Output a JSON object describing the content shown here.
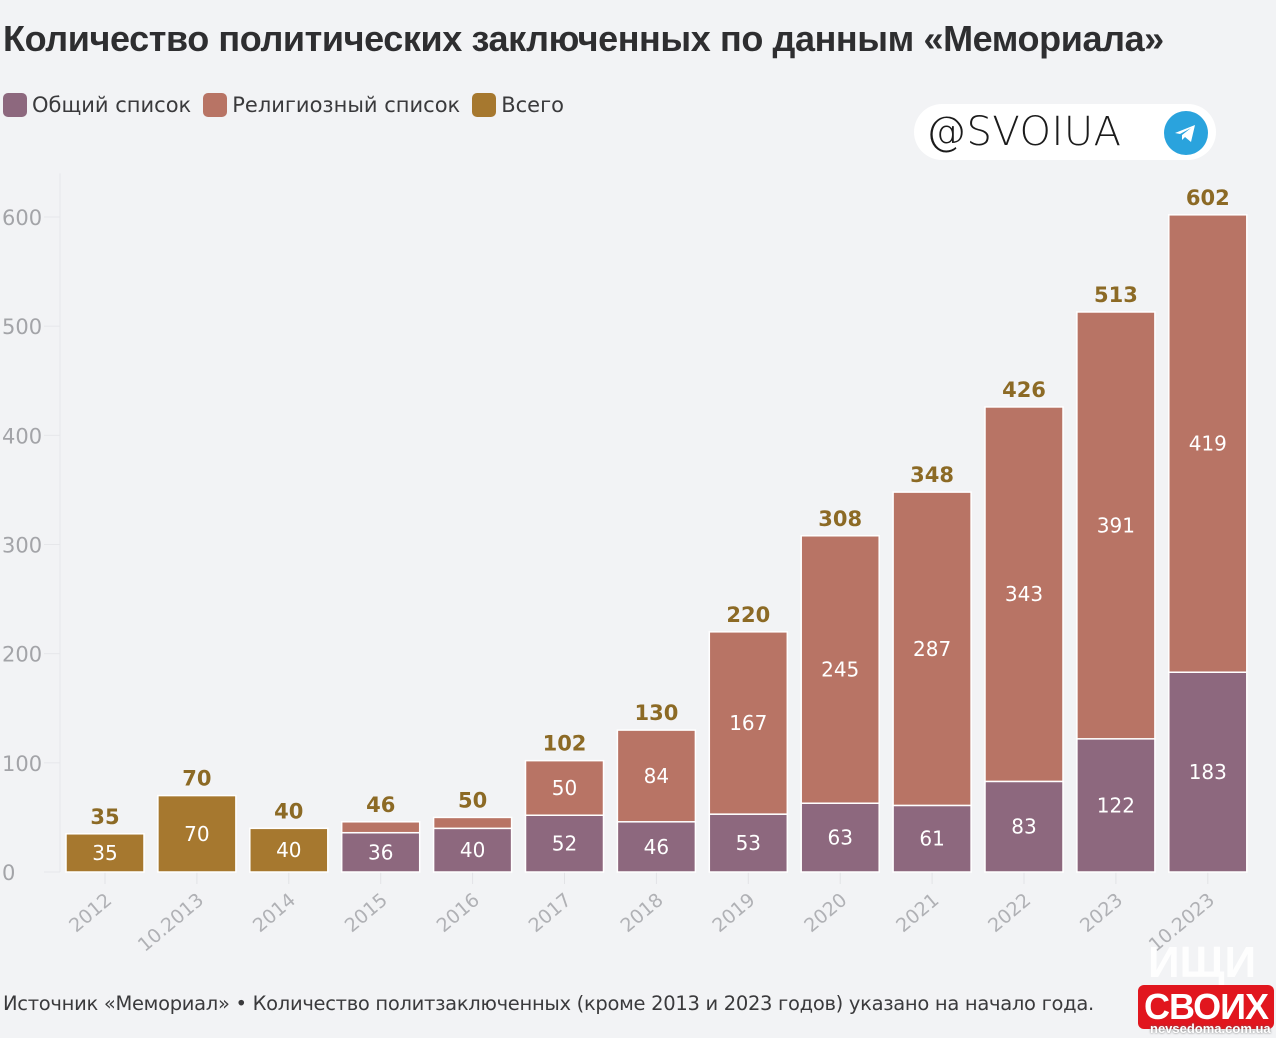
{
  "chart_data": {
    "type": "bar",
    "stacked": true,
    "title": "Количество политических заключенных по данным «Мемориала»",
    "xlabel": "",
    "ylabel": "",
    "ylim": [
      0,
      640
    ],
    "yticks": [
      0,
      100,
      200,
      300,
      400,
      500,
      600
    ],
    "grid": "vertical-light",
    "legend_position": "top-left",
    "categories": [
      "2012",
      "10.2013",
      "2014",
      "2015",
      "2016",
      "2017",
      "2018",
      "2019",
      "2020",
      "2021",
      "2022",
      "2023",
      "10.2023"
    ],
    "series": [
      {
        "name": "Общий список",
        "color": "#8d687e",
        "values": [
          null,
          null,
          null,
          36,
          40,
          52,
          46,
          53,
          63,
          61,
          83,
          122,
          183
        ],
        "labels_shown": [
          false,
          false,
          false,
          true,
          true,
          true,
          true,
          true,
          true,
          true,
          true,
          true,
          true
        ]
      },
      {
        "name": "Религиозный список",
        "color": "#b87465",
        "values": [
          null,
          null,
          null,
          10,
          10,
          50,
          84,
          167,
          245,
          287,
          343,
          391,
          419
        ],
        "labels_shown": [
          false,
          false,
          false,
          false,
          false,
          true,
          true,
          true,
          true,
          true,
          true,
          true,
          true
        ]
      },
      {
        "name": "Всего",
        "color": "#a6782f",
        "values": [
          35,
          70,
          40,
          null,
          null,
          null,
          null,
          null,
          null,
          null,
          null,
          null,
          null
        ],
        "labels_shown": [
          true,
          true,
          true,
          false,
          false,
          false,
          false,
          false,
          false,
          false,
          false,
          false,
          false
        ]
      }
    ],
    "totals": [
      35,
      70,
      40,
      46,
      50,
      102,
      130,
      220,
      308,
      348,
      426,
      513,
      602
    ],
    "total_label_color": "#8c6a25"
  },
  "header": {
    "title": "Количество политических заключенных по данным «Мемориала»"
  },
  "legend": [
    {
      "label": "Общий список",
      "color": "#8d687e"
    },
    {
      "label": "Религиозный список",
      "color": "#b87465"
    },
    {
      "label": "Всего",
      "color": "#a6782f"
    }
  ],
  "badge": {
    "text": "@SVOIUA",
    "icon": "telegram-icon"
  },
  "footer": {
    "text": "Источник «Мемориал» • Количество политзаключенных (кроме 2013 и 2023 годов) указано на начало года."
  },
  "watermark": {
    "text": "СВОИХ",
    "subtext": "nevsedoma.com.ua",
    "ghost": "ИЩИ"
  }
}
